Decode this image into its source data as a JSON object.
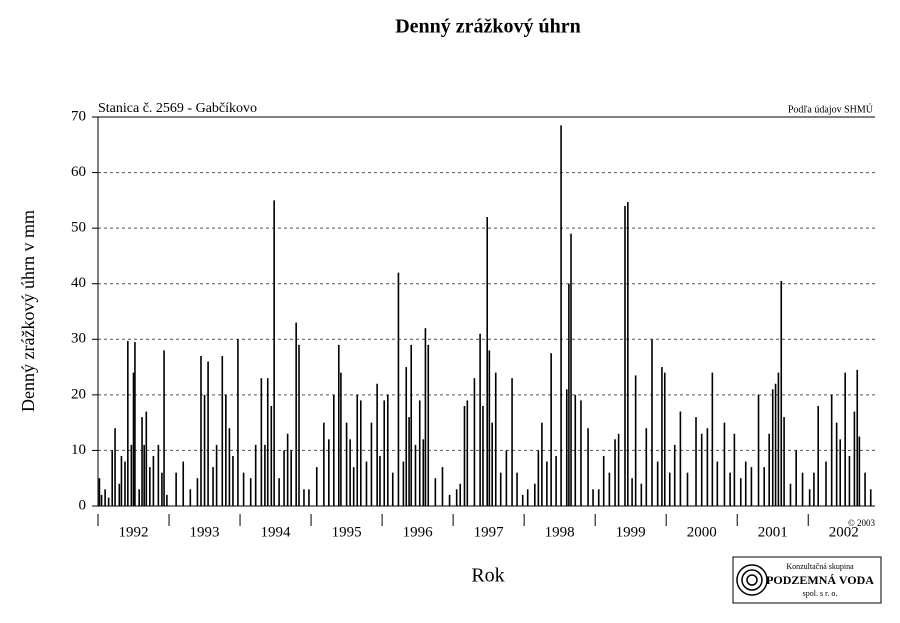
{
  "chart_data": {
    "type": "bar",
    "title": "Denný zrážkový úhrn",
    "note_left": "Stanica č. 2569 - Gabčíkovo",
    "note_right": "Podľa údajov SHMÚ",
    "ylabel": "Denný zrážkový úhrn v mm",
    "xlabel": "Rok",
    "copyright": "© 2003",
    "logo": {
      "line1": "Konzultačná skupina",
      "line2": "PODZEMNÁ VODA",
      "line3": "spol. s r. o."
    },
    "color": "#000000",
    "xlim": [
      1992.0,
      2002.94
    ],
    "xticks": [
      1992,
      1993,
      1994,
      1995,
      1996,
      1997,
      1998,
      1999,
      2000,
      2001,
      2002
    ],
    "year_labels": [
      "1992",
      "1993",
      "1994",
      "1995",
      "1996",
      "1997",
      "1998",
      "1999",
      "2000",
      "2001",
      "2002"
    ],
    "ylim": [
      0,
      70
    ],
    "yticks": [
      0,
      10,
      20,
      30,
      40,
      50,
      60,
      70
    ],
    "grid": true,
    "x": [
      1992.02,
      1992.05,
      1992.1,
      1992.15,
      1992.2,
      1992.24,
      1992.3,
      1992.33,
      1992.38,
      1992.42,
      1992.47,
      1992.5,
      1992.52,
      1992.58,
      1992.62,
      1992.65,
      1992.68,
      1992.73,
      1992.78,
      1992.85,
      1992.9,
      1992.93,
      1992.97,
      1993.1,
      1993.2,
      1993.3,
      1993.4,
      1993.45,
      1993.5,
      1993.55,
      1993.62,
      1993.67,
      1993.75,
      1993.8,
      1993.85,
      1993.9,
      1993.97,
      1994.05,
      1994.15,
      1994.22,
      1994.3,
      1994.35,
      1994.39,
      1994.44,
      1994.48,
      1994.55,
      1994.62,
      1994.67,
      1994.72,
      1994.79,
      1994.83,
      1994.9,
      1994.97,
      1995.08,
      1995.18,
      1995.25,
      1995.32,
      1995.39,
      1995.42,
      1995.5,
      1995.55,
      1995.6,
      1995.65,
      1995.7,
      1995.78,
      1995.85,
      1995.93,
      1995.97,
      1996.03,
      1996.08,
      1996.15,
      1996.23,
      1996.3,
      1996.34,
      1996.38,
      1996.41,
      1996.47,
      1996.53,
      1996.58,
      1996.61,
      1996.65,
      1996.75,
      1996.85,
      1996.95,
      1997.05,
      1997.1,
      1997.16,
      1997.2,
      1997.3,
      1997.38,
      1997.42,
      1997.48,
      1997.51,
      1997.55,
      1997.6,
      1997.67,
      1997.75,
      1997.83,
      1997.9,
      1997.98,
      1998.05,
      1998.15,
      1998.2,
      1998.25,
      1998.32,
      1998.38,
      1998.45,
      1998.52,
      1998.6,
      1998.63,
      1998.66,
      1998.72,
      1998.8,
      1998.9,
      1998.97,
      1999.05,
      1999.12,
      1999.2,
      1999.28,
      1999.33,
      1999.42,
      1999.46,
      1999.52,
      1999.57,
      1999.65,
      1999.72,
      1999.8,
      1999.88,
      1999.94,
      1999.98,
      2000.05,
      2000.12,
      2000.2,
      2000.3,
      2000.42,
      2000.5,
      2000.58,
      2000.65,
      2000.72,
      2000.82,
      2000.9,
      2000.96,
      2001.05,
      2001.12,
      2001.2,
      2001.3,
      2001.38,
      2001.45,
      2001.5,
      2001.54,
      2001.58,
      2001.62,
      2001.66,
      2001.75,
      2001.83,
      2001.92,
      2002.02,
      2002.08,
      2002.14,
      2002.25,
      2002.33,
      2002.4,
      2002.45,
      2002.52,
      2002.58,
      2002.65,
      2002.69,
      2002.72,
      2002.8,
      2002.88
    ],
    "values": [
      5,
      2,
      3,
      1.5,
      10,
      14,
      4,
      9,
      8,
      29.7,
      11,
      24,
      29.5,
      3,
      16,
      11,
      17,
      7,
      9,
      11,
      6,
      28,
      2,
      6,
      8,
      3,
      5,
      27,
      20,
      26,
      7,
      11,
      27,
      20,
      14,
      9,
      30,
      6,
      5,
      11,
      23,
      11,
      23,
      18,
      55,
      5,
      10,
      13,
      10,
      33,
      29,
      3,
      3,
      7,
      15,
      12,
      20,
      29,
      24,
      15,
      12,
      7,
      20,
      19,
      8,
      15,
      22,
      9,
      19,
      20,
      6,
      42,
      8,
      25,
      16,
      29,
      11,
      19,
      12,
      32,
      29,
      5,
      7,
      2,
      3,
      4,
      18,
      19,
      23,
      31,
      18,
      52,
      28,
      15,
      24,
      6,
      10,
      23,
      6,
      2,
      3,
      4,
      10,
      15,
      8,
      27.5,
      9,
      68.5,
      21,
      40,
      49,
      20,
      19,
      14,
      3,
      3,
      9,
      6,
      12,
      13,
      54,
      54.7,
      5,
      23.5,
      4,
      14,
      30,
      8,
      25,
      24,
      6,
      11,
      17,
      6,
      16,
      13,
      14,
      24,
      8,
      15,
      6,
      13,
      5,
      8,
      7,
      20,
      7,
      13,
      21,
      22,
      24,
      40.5,
      16,
      4,
      10,
      6,
      3,
      6,
      18,
      8,
      20,
      15,
      12,
      24,
      9,
      17,
      24.5,
      12.5,
      6,
      3
    ]
  }
}
